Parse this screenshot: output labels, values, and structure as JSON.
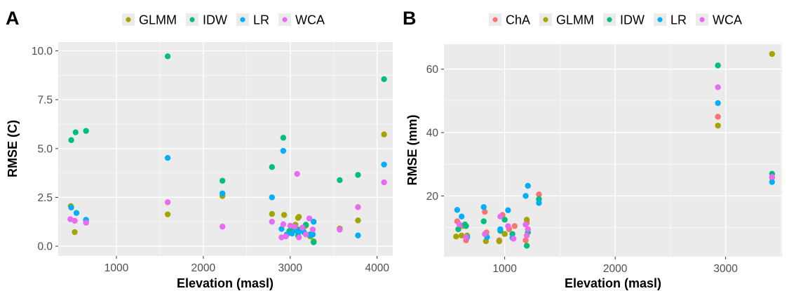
{
  "chart_data": [
    {
      "panel_label": "A",
      "type": "scatter",
      "xlabel": "Elevation (masl)",
      "ylabel": "RMSE (C)",
      "xlim": [
        330,
        4180
      ],
      "ylim": [
        -0.5,
        10.45
      ],
      "xticks": [
        1000,
        2000,
        3000,
        4000
      ],
      "xtick_labels": [
        "1000",
        "2000",
        "3000",
        "4000"
      ],
      "yticks": [
        0,
        2.5,
        5,
        7.5,
        10
      ],
      "ytick_labels": [
        "0.0",
        "2.5",
        "5.0",
        "7.5",
        "10.0"
      ],
      "grid": true,
      "legend_position": "top",
      "series": [
        {
          "name": "GLMM",
          "color": "#a3a500",
          "points": [
            [
              475,
              2.05
            ],
            [
              520,
              0.72
            ],
            [
              650,
              1.25
            ],
            [
              1590,
              1.63
            ],
            [
              2220,
              2.57
            ],
            [
              2790,
              1.65
            ],
            [
              2930,
              1.6
            ],
            [
              3000,
              0.75
            ],
            [
              3060,
              1.1
            ],
            [
              3090,
              1.45
            ],
            [
              3100,
              1.5
            ],
            [
              3150,
              0.95
            ],
            [
              3180,
              1.05
            ],
            [
              3230,
              0.5
            ],
            [
              3270,
              0.25
            ],
            [
              3570,
              0.9
            ],
            [
              3780,
              1.32
            ],
            [
              4080,
              5.72
            ]
          ]
        },
        {
          "name": "IDW",
          "color": "#00bf7d",
          "points": [
            [
              480,
              5.43
            ],
            [
              530,
              5.83
            ],
            [
              650,
              5.9
            ],
            [
              1590,
              9.72
            ],
            [
              2220,
              3.35
            ],
            [
              2790,
              4.05
            ],
            [
              2920,
              5.55
            ],
            [
              2990,
              0.78
            ],
            [
              3040,
              0.95
            ],
            [
              3090,
              0.55
            ],
            [
              3100,
              0.85
            ],
            [
              3150,
              0.95
            ],
            [
              3180,
              1.1
            ],
            [
              3230,
              0.6
            ],
            [
              3270,
              0.2
            ],
            [
              3570,
              3.38
            ],
            [
              3780,
              3.65
            ],
            [
              4080,
              8.55
            ]
          ]
        },
        {
          "name": "LR",
          "color": "#00b0f6",
          "points": [
            [
              480,
              1.98
            ],
            [
              540,
              1.7
            ],
            [
              650,
              1.35
            ],
            [
              1590,
              4.52
            ],
            [
              2220,
              2.7
            ],
            [
              2790,
              2.5
            ],
            [
              2900,
              0.88
            ],
            [
              2920,
              4.88
            ],
            [
              2960,
              0.6
            ],
            [
              3020,
              0.65
            ],
            [
              3070,
              0.8
            ],
            [
              3100,
              0.75
            ],
            [
              3160,
              0.7
            ],
            [
              3240,
              0.55
            ],
            [
              3260,
              0.6
            ],
            [
              3270,
              1.25
            ],
            [
              3570,
              0.85
            ],
            [
              3780,
              0.55
            ],
            [
              4080,
              4.18
            ]
          ]
        },
        {
          "name": "WCA",
          "color": "#e76bf3",
          "points": [
            [
              470,
              1.38
            ],
            [
              520,
              1.3
            ],
            [
              650,
              1.2
            ],
            [
              1590,
              2.25
            ],
            [
              2220,
              1.0
            ],
            [
              2790,
              1.25
            ],
            [
              2900,
              0.45
            ],
            [
              2920,
              1.12
            ],
            [
              2950,
              0.5
            ],
            [
              3000,
              1.05
            ],
            [
              3050,
              1.0
            ],
            [
              3080,
              3.7
            ],
            [
              3100,
              0.45
            ],
            [
              3140,
              0.95
            ],
            [
              3180,
              0.6
            ],
            [
              3220,
              1.42
            ],
            [
              3260,
              0.85
            ],
            [
              3570,
              0.85
            ],
            [
              3780,
              2.0
            ],
            [
              4080,
              3.27
            ]
          ]
        }
      ]
    },
    {
      "panel_label": "B",
      "type": "scatter",
      "xlabel": "Elevation (masl)",
      "ylabel": "RMSE (mm)",
      "xlim": [
        450,
        3510
      ],
      "ylim": [
        0.85,
        67.9
      ],
      "xticks": [
        1000,
        2000,
        3000
      ],
      "xtick_labels": [
        "1000",
        "2000",
        "3000"
      ],
      "yticks": [
        20,
        40,
        60
      ],
      "ytick_labels": [
        "20",
        "40",
        "60"
      ],
      "grid": true,
      "legend_position": "top",
      "series": [
        {
          "name": "ChA",
          "color": "#f8766d",
          "points": [
            [
              570,
              12.0
            ],
            [
              620,
              10.5
            ],
            [
              650,
              6.0
            ],
            [
              820,
              15.0
            ],
            [
              835,
              8.5
            ],
            [
              950,
              6.0
            ],
            [
              980,
              14.0
            ],
            [
              1040,
              9.5
            ],
            [
              1090,
              10.5
            ],
            [
              1190,
              6.0
            ],
            [
              1200,
              11.5
            ],
            [
              1310,
              20.5
            ],
            [
              2930,
              45.0
            ],
            [
              3420,
              25.8
            ]
          ]
        },
        {
          "name": "GLMM",
          "color": "#a3a500",
          "points": [
            [
              560,
              7.2
            ],
            [
              610,
              7.5
            ],
            [
              660,
              7.5
            ],
            [
              830,
              5.7
            ],
            [
              950,
              5.7
            ],
            [
              1000,
              8.0
            ],
            [
              1200,
              12.5
            ],
            [
              2930,
              42.2
            ],
            [
              3420,
              64.8
            ]
          ]
        },
        {
          "name": "IDW",
          "color": "#00bf7d",
          "points": [
            [
              580,
              9.5
            ],
            [
              640,
              11.0
            ],
            [
              650,
              10.5
            ],
            [
              810,
              12.0
            ],
            [
              960,
              9.0
            ],
            [
              1000,
              12.5
            ],
            [
              1070,
              8.0
            ],
            [
              1200,
              4.3
            ],
            [
              1210,
              8.5
            ],
            [
              1310,
              19.0
            ],
            [
              2930,
              61.2
            ],
            [
              3420,
              27.0
            ]
          ]
        },
        {
          "name": "LR",
          "color": "#00b0f6",
          "points": [
            [
              570,
              15.6
            ],
            [
              610,
              13.5
            ],
            [
              660,
              7.0
            ],
            [
              810,
              16.5
            ],
            [
              840,
              7.0
            ],
            [
              960,
              9.5
            ],
            [
              1030,
              15.5
            ],
            [
              1070,
              6.8
            ],
            [
              1190,
              20.0
            ],
            [
              1210,
              23.2
            ],
            [
              1310,
              17.8
            ],
            [
              2930,
              49.3
            ],
            [
              3420,
              24.4
            ]
          ]
        },
        {
          "name": "WCA",
          "color": "#e76bf3",
          "points": [
            [
              590,
              11.0
            ],
            [
              650,
              7.0
            ],
            [
              820,
              8.0
            ],
            [
              960,
              13.5
            ],
            [
              1030,
              10.5
            ],
            [
              1080,
              6.5
            ],
            [
              1190,
              11.0
            ],
            [
              1200,
              7.5
            ],
            [
              1210,
              9.5
            ],
            [
              2930,
              54.3
            ],
            [
              3420,
              26.0
            ]
          ]
        }
      ]
    }
  ]
}
